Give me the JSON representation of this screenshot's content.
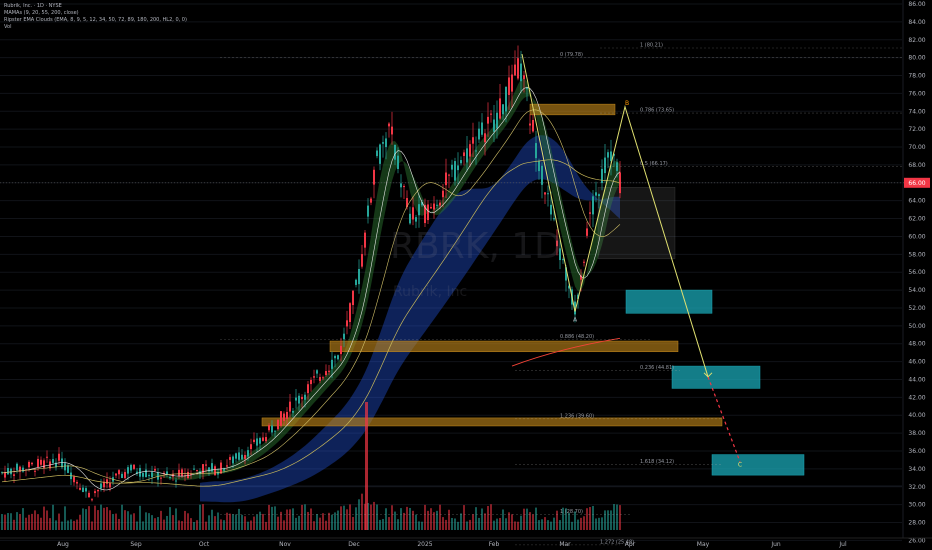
{
  "header": {
    "symbol_line": "Rubrik, Inc. · 1D · NYSE",
    "indicator_1": "MAMAs (9, 20, 55, 200, close)",
    "indicator_2": "Ripster EMA Clouds (EMA, 8, 9, 5, 12, 34, 50, 72, 89, 180, 200, HL2, 0, 0)",
    "indicator_3": "Vol"
  },
  "watermark": {
    "ticker": "RBRK, 1D",
    "name": "Rubrik, Inc"
  },
  "price_axis": {
    "labels": [
      "86.00",
      "84.00",
      "82.00",
      "80.00",
      "78.00",
      "76.00",
      "74.00",
      "72.00",
      "70.00",
      "68.00",
      "66.00",
      "64.00",
      "62.00",
      "60.00",
      "58.00",
      "56.00",
      "54.00",
      "52.00",
      "50.00",
      "48.00",
      "46.00",
      "44.00",
      "42.00",
      "40.00",
      "38.00",
      "36.00",
      "34.00",
      "32.00",
      "30.00",
      "28.00",
      "26.00"
    ],
    "current_price": "66.00",
    "current_color": "#f23645"
  },
  "time_axis": {
    "labels": [
      "Aug",
      "Sep",
      "Oct",
      "Nov",
      "Dec",
      "2025",
      "Feb",
      "Mar",
      "Apr",
      "May",
      "Jun",
      "Jul"
    ]
  },
  "fib_labels": [
    "0 (79.78)",
    "1 (80.21)",
    "0.786 (73.65)",
    "0.5 (66.17)",
    "0.886 (48.20)",
    "0.236 (44.81)",
    "1.236 (39.60)",
    "1.618 (34.12)",
    "1 (28.70)",
    "1.272 (25.48)"
  ],
  "points": {
    "A": "A",
    "B": "B",
    "C": "C"
  },
  "colors": {
    "up": "#26a69a",
    "down": "#f23645",
    "zone_orange": "#c68a1b",
    "target_teal": "#1aa7b5",
    "green_cloud": "#2e7d32",
    "blue_cloud": "#2962ff",
    "projection": "#e0e070",
    "ma_red": "#f44336"
  },
  "chart_data": {
    "type": "candlestick",
    "price_range": [
      25,
      86
    ],
    "last_price": 66.0,
    "series": [
      {
        "name": "",
        "x": [
          "2024-07-15",
          "2024-08-01",
          "2024-09-01",
          "2024-10-01",
          "2024-11-01",
          "2024-12-01",
          "2024-12-10",
          "2025-01-01",
          "2025-02-01",
          "2025-02-20",
          "2025-03-01",
          "2025-03-15",
          "2025-03-28"
        ],
        "values": [
          33.5,
          33.0,
          34.0,
          34.0,
          44.0,
          56.0,
          70.0,
          66.0,
          74.0,
          79.0,
          60.0,
          52.0,
          66.0
        ]
      }
    ],
    "pattern_points": {
      "A": 51.8,
      "B": 74.5,
      "C": 34.5
    },
    "zones": [
      {
        "type": "resistance",
        "low": 73.6,
        "high": 74.8
      },
      {
        "type": "support",
        "low": 47.1,
        "high": 48.3
      },
      {
        "type": "support",
        "low": 38.8,
        "high": 39.7
      }
    ],
    "targets": [
      {
        "low": 51.4,
        "high": 54.0
      },
      {
        "low": 43.0,
        "high": 45.5
      },
      {
        "low": 33.3,
        "high": 35.6
      }
    ]
  }
}
